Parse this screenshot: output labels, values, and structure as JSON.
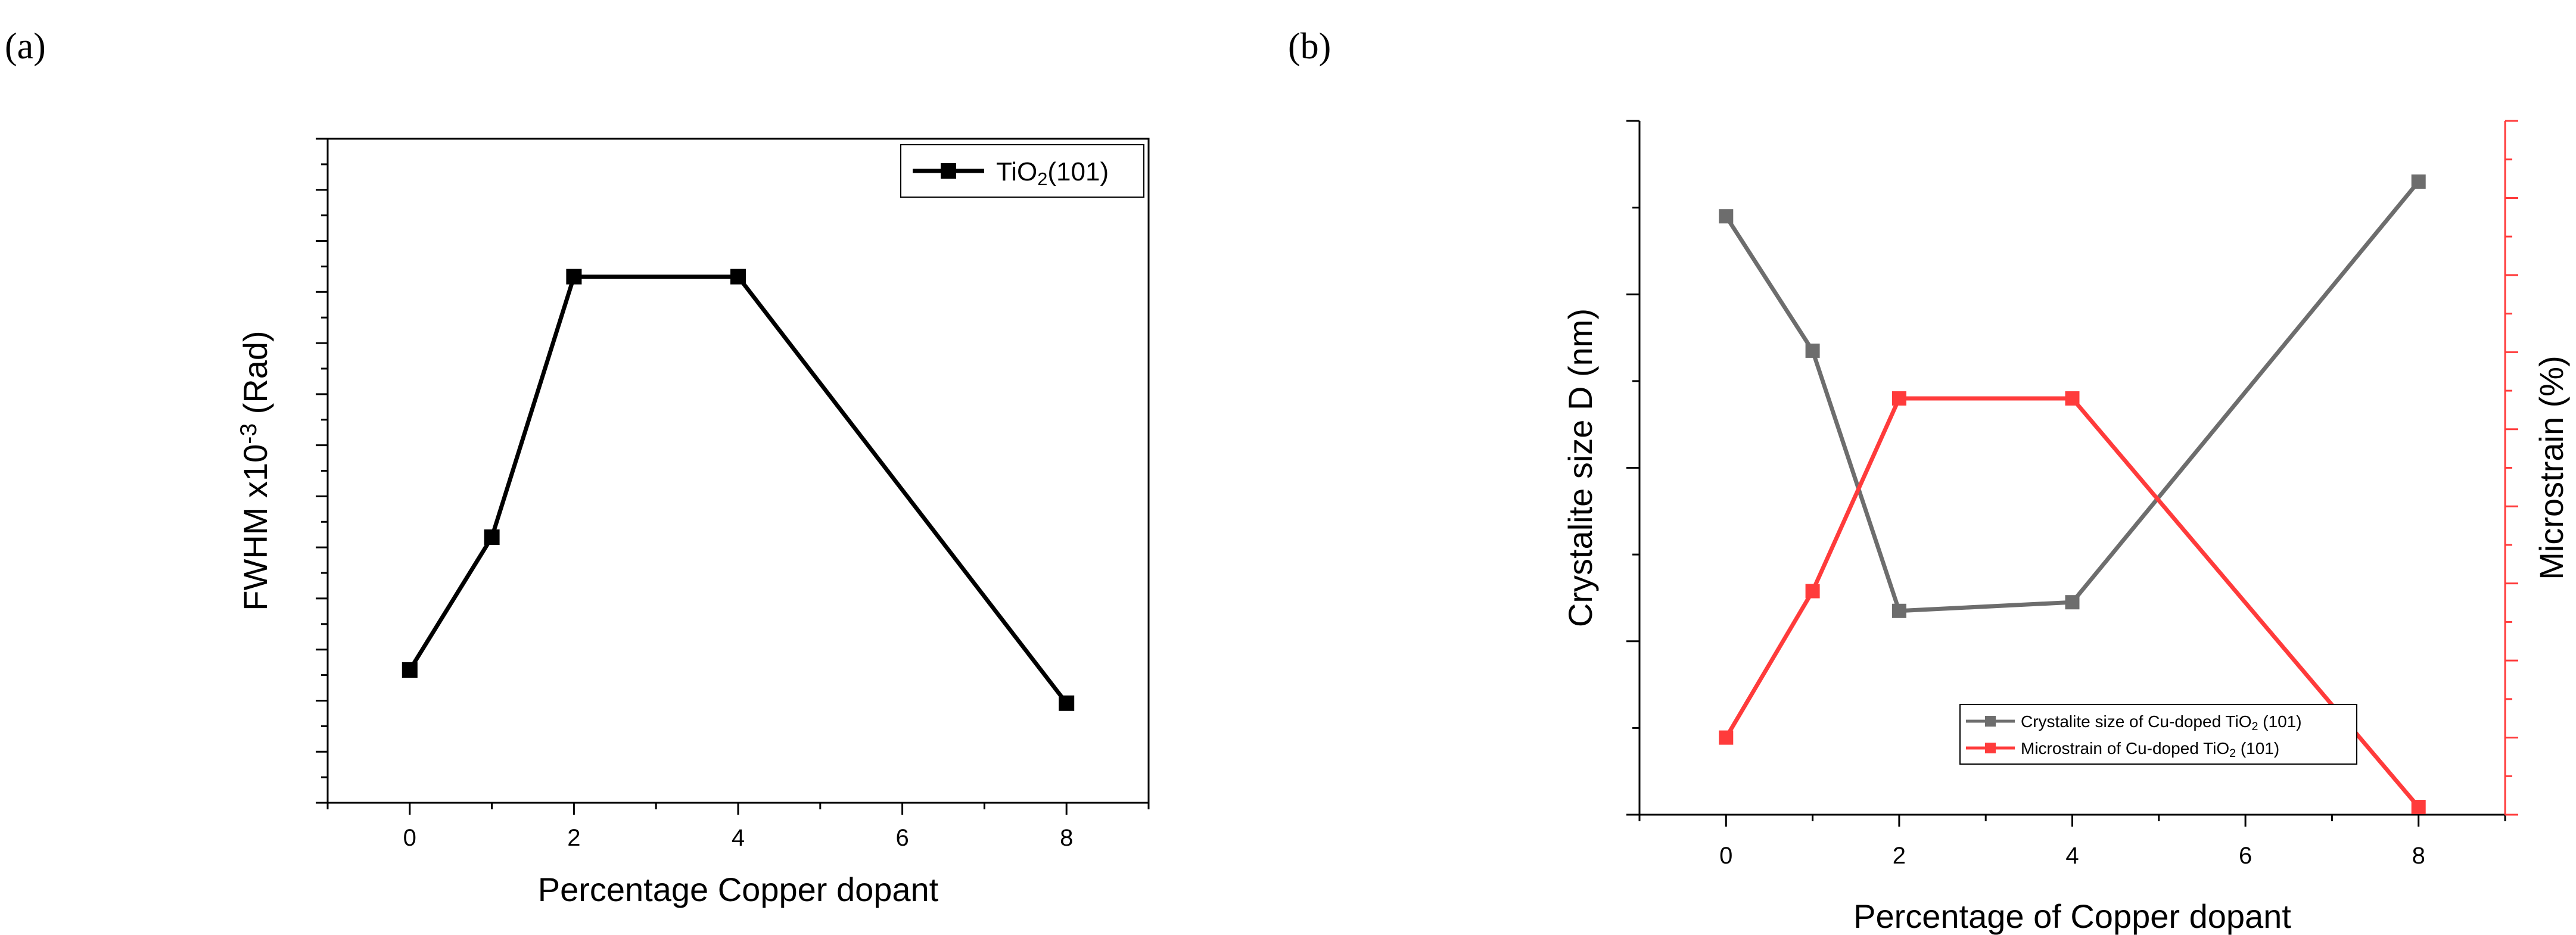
{
  "panels": {
    "a": {
      "label": "(a)"
    },
    "b": {
      "label": "(b)"
    }
  },
  "chart_data": [
    {
      "type": "line",
      "xlabel": "Percentage Copper dopant",
      "ylabel": {
        "base": "FWHM x10",
        "sup": "-3",
        "tail": " (Rad)"
      },
      "xticks": [
        0,
        2,
        4,
        6,
        8
      ],
      "xlim": [
        -1,
        9
      ],
      "ylim": [
        0,
        13
      ],
      "y_tick_labels_visible": false,
      "legend_position": "top-right",
      "series": [
        {
          "name": {
            "base": "TiO",
            "sub": "2",
            "tail": "(101)"
          },
          "x": [
            0,
            1,
            2,
            4,
            8
          ],
          "y": [
            2.6,
            5.2,
            10.3,
            10.3,
            1.95
          ],
          "color": "#000000",
          "marker": "square"
        }
      ]
    },
    {
      "type": "line",
      "xlabel": "Percentage of Copper dopant",
      "ylabel_left": "Crystalite size D (nm)",
      "ylabel_right": "Microstrain (%)",
      "xticks": [
        0,
        2,
        4,
        6,
        8
      ],
      "xlim": [
        -1,
        9
      ],
      "ylim_left": [
        0,
        8
      ],
      "ylim_right": [
        0,
        9
      ],
      "y_tick_labels_visible": false,
      "legend_position": "bottom-right",
      "series": [
        {
          "name": {
            "base": "Crystalite size of Cu-doped TiO",
            "sub": "2",
            "tail": " (101)"
          },
          "axis": "left",
          "x": [
            0,
            1,
            2,
            4,
            8
          ],
          "y": [
            6.9,
            5.35,
            2.35,
            2.45,
            7.3
          ],
          "color": "#6d6d6d",
          "marker": "square"
        },
        {
          "name": {
            "base": "Microstrain of Cu-doped TiO",
            "sub": "2",
            "tail": " (101)"
          },
          "axis": "right",
          "x": [
            0,
            1,
            2,
            4,
            8
          ],
          "y": [
            1.0,
            2.9,
            5.4,
            5.4,
            0.1
          ],
          "color": "#ff3b3b",
          "marker": "square"
        }
      ]
    }
  ]
}
